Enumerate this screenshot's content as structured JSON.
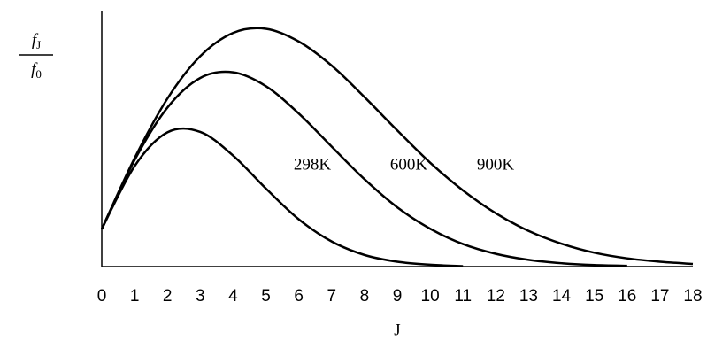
{
  "chart_data": {
    "type": "line",
    "x_label": "J",
    "y_label": {
      "numerator": {
        "symbol": "f",
        "subscript": "J"
      },
      "denominator": {
        "symbol": "f",
        "subscript": "0"
      }
    },
    "x": [
      0,
      1,
      2,
      3,
      4,
      5,
      6,
      7,
      8,
      9,
      10,
      11,
      12,
      13,
      14,
      15,
      16,
      17,
      18
    ],
    "series": [
      {
        "name": "298K",
        "color": "#000000",
        "values": [
          1,
          2.68,
          3.58,
          3.59,
          2.96,
          2.08,
          1.26,
          0.67,
          0.31,
          0.13,
          0.05,
          0.01,
          null,
          null,
          null,
          null,
          null,
          null,
          null
        ]
      },
      {
        "name": "600K",
        "color": "#000000",
        "values": [
          1,
          2.84,
          4.24,
          5.03,
          5.18,
          4.81,
          4.08,
          3.2,
          2.33,
          1.58,
          1.01,
          0.6,
          0.34,
          0.18,
          0.09,
          0.04,
          0.02,
          null,
          null
        ]
      },
      {
        "name": "900K",
        "color": "#000000",
        "values": [
          1,
          2.89,
          4.48,
          5.61,
          6.23,
          6.34,
          6.0,
          5.36,
          4.52,
          3.63,
          2.77,
          2.03,
          1.42,
          0.95,
          0.61,
          0.37,
          0.22,
          0.13,
          0.07
        ]
      }
    ],
    "xlim": [
      0,
      18
    ],
    "xticks": [
      0,
      1,
      2,
      3,
      4,
      5,
      6,
      7,
      8,
      9,
      10,
      11,
      12,
      13,
      14,
      15,
      16,
      17,
      18
    ],
    "ylim": [
      0,
      6.8
    ],
    "grid": false
  }
}
